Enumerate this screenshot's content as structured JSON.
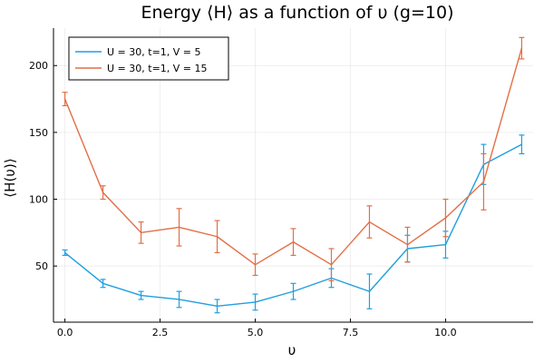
{
  "chart_data": {
    "type": "line",
    "title": "Energy ⟨H⟩ as a function of υ (g=10)",
    "xlabel": "υ",
    "ylabel": "⟨H(υ)⟩",
    "xlim": [
      -0.3,
      12.3
    ],
    "ylim": [
      8,
      228
    ],
    "xticks": [
      0,
      2.5,
      5,
      7.5,
      10
    ],
    "xtick_labels": [
      "0.0",
      "2.5",
      "5.0",
      "7.5",
      "10.0"
    ],
    "yticks": [
      50,
      100,
      150,
      200
    ],
    "ytick_labels": [
      "50",
      "100",
      "150",
      "200"
    ],
    "grid": true,
    "legend_position": "top-left",
    "x": [
      0,
      1,
      2,
      3,
      4,
      5,
      6,
      7,
      8,
      9,
      10,
      11,
      12
    ],
    "series": [
      {
        "name": "U = 30, t=1, V = 5",
        "color": "#1f9fe0",
        "values": [
          60,
          37,
          28,
          25,
          20,
          23,
          31,
          41,
          31,
          63,
          66,
          126,
          141
        ],
        "errors": [
          2,
          3,
          3,
          6,
          5,
          6,
          6,
          7,
          13,
          10,
          10,
          15,
          7
        ]
      },
      {
        "name": "U = 30, t=1, V = 15",
        "color": "#e26f46",
        "values": [
          175,
          105,
          75,
          79,
          72,
          51,
          68,
          51,
          83,
          66,
          86,
          113,
          213
        ],
        "errors": [
          5,
          5,
          8,
          14,
          12,
          8,
          10,
          12,
          12,
          13,
          14,
          21,
          8
        ]
      }
    ]
  }
}
